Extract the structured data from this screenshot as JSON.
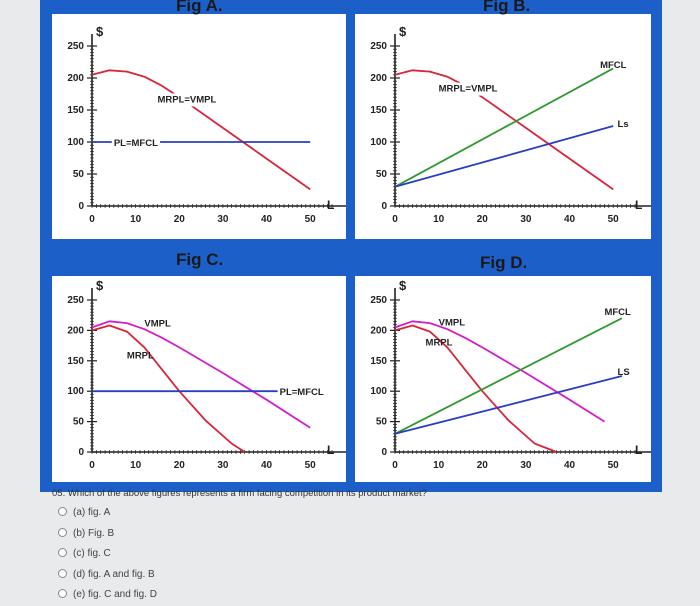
{
  "colors": {
    "frame": "#1d5fc9",
    "mrp": "#d9243a",
    "vmp": "#d21ec8",
    "mfc": "#2e9a2e",
    "ls": "#2a3ec2",
    "axis": "#222222"
  },
  "chart_data": [
    {
      "id": "figA",
      "type": "line",
      "title": "Fig A.",
      "ylabel": "$",
      "xlabel": "L",
      "xlim": [
        0,
        55
      ],
      "ylim": [
        0,
        250
      ],
      "xticks": [
        "0",
        "10",
        "20",
        "30",
        "40",
        "50"
      ],
      "yticks": [
        "0",
        "50",
        "100",
        "150",
        "200",
        "250"
      ],
      "series": [
        {
          "name": "MRPL=VMPL",
          "color": "mrp",
          "x": [
            0,
            4,
            8,
            12,
            16,
            20,
            30,
            40,
            50
          ],
          "y": [
            205,
            212,
            210,
            202,
            188,
            170,
            122,
            74,
            26
          ]
        },
        {
          "name": "PL=MFCL",
          "color": "ls",
          "x": [
            0,
            50
          ],
          "y": [
            100,
            100
          ]
        }
      ],
      "labels": [
        {
          "text": "MRPL=VMPL",
          "x": 15,
          "y": 168
        },
        {
          "text": "PL=MFCL",
          "x": 5,
          "y": 100
        }
      ]
    },
    {
      "id": "figB",
      "type": "line",
      "title": "Fig B.",
      "ylabel": "$",
      "xlabel": "L",
      "xlim": [
        0,
        55
      ],
      "ylim": [
        0,
        250
      ],
      "xticks": [
        "0",
        "10",
        "20",
        "30",
        "40",
        "50"
      ],
      "yticks": [
        "0",
        "50",
        "100",
        "150",
        "200",
        "250"
      ],
      "series": [
        {
          "name": "MRPL=VMPL",
          "color": "mrp",
          "x": [
            0,
            4,
            8,
            12,
            16,
            20,
            30,
            40,
            50
          ],
          "y": [
            205,
            212,
            210,
            202,
            188,
            170,
            122,
            74,
            26
          ]
        },
        {
          "name": "MFCL",
          "color": "mfc",
          "x": [
            0,
            50
          ],
          "y": [
            30,
            215
          ]
        },
        {
          "name": "Ls",
          "color": "ls",
          "x": [
            0,
            50
          ],
          "y": [
            30,
            125
          ]
        }
      ],
      "labels": [
        {
          "text": "MRPL=VMPL",
          "x": 10,
          "y": 185
        },
        {
          "text": "MFCL",
          "x": 47,
          "y": 222
        },
        {
          "text": "Ls",
          "x": 51,
          "y": 130
        }
      ]
    },
    {
      "id": "figC",
      "type": "line",
      "title": "Fig C.",
      "ylabel": "$",
      "xlabel": "L",
      "xlim": [
        0,
        55
      ],
      "ylim": [
        0,
        250
      ],
      "xticks": [
        "0",
        "10",
        "20",
        "30",
        "40",
        "50"
      ],
      "yticks": [
        "0",
        "50",
        "100",
        "150",
        "200",
        "250"
      ],
      "series": [
        {
          "name": "VMPL",
          "color": "vmp",
          "x": [
            0,
            4,
            8,
            12,
            16,
            20,
            30,
            40,
            50
          ],
          "y": [
            205,
            215,
            212,
            202,
            188,
            172,
            130,
            86,
            40
          ]
        },
        {
          "name": "MRPL",
          "color": "mrp",
          "x": [
            0,
            4,
            8,
            12,
            16,
            20,
            26,
            32,
            35
          ],
          "y": [
            200,
            208,
            198,
            172,
            136,
            100,
            52,
            14,
            0
          ]
        },
        {
          "name": "PL=MFCL",
          "color": "ls",
          "x": [
            0,
            44
          ],
          "y": [
            100,
            100
          ]
        }
      ],
      "labels": [
        {
          "text": "VMPL",
          "x": 12,
          "y": 213
        },
        {
          "text": "MRPL",
          "x": 8,
          "y": 160
        },
        {
          "text": "PL=MFCL",
          "x": 43,
          "y": 100
        }
      ]
    },
    {
      "id": "figD",
      "type": "line",
      "title": "Fig D.",
      "ylabel": "$",
      "xlabel": "L",
      "xlim": [
        0,
        55
      ],
      "ylim": [
        0,
        250
      ],
      "xticks": [
        "0",
        "10",
        "20",
        "30",
        "40",
        "50"
      ],
      "yticks": [
        "0",
        "50",
        "100",
        "150",
        "200",
        "250"
      ],
      "series": [
        {
          "name": "VMPL",
          "color": "vmp",
          "x": [
            0,
            4,
            8,
            12,
            16,
            20,
            30,
            40,
            48
          ],
          "y": [
            205,
            215,
            212,
            202,
            188,
            172,
            130,
            86,
            50
          ]
        },
        {
          "name": "MRPL",
          "color": "mrp",
          "x": [
            0,
            4,
            8,
            12,
            16,
            20,
            26,
            32,
            37
          ],
          "y": [
            200,
            208,
            198,
            172,
            136,
            100,
            52,
            14,
            0
          ]
        },
        {
          "name": "MFCL",
          "color": "mfc",
          "x": [
            0,
            52
          ],
          "y": [
            30,
            220
          ]
        },
        {
          "name": "LS",
          "color": "ls",
          "x": [
            0,
            52
          ],
          "y": [
            30,
            125
          ]
        }
      ],
      "labels": [
        {
          "text": "VMPL",
          "x": 10,
          "y": 215
        },
        {
          "text": "MRPL",
          "x": 7,
          "y": 182
        },
        {
          "text": "MFCL",
          "x": 48,
          "y": 232
        },
        {
          "text": "LS",
          "x": 51,
          "y": 133
        }
      ]
    }
  ],
  "question": {
    "text": "05. Which of the above figures represents a firm facing competition in its product market?",
    "options": [
      "(a) fig. A",
      "(b) Fig. B",
      "(c) fig. C",
      "(d) fig. A and fig. B",
      "(e) fig. C and fig. D"
    ]
  }
}
